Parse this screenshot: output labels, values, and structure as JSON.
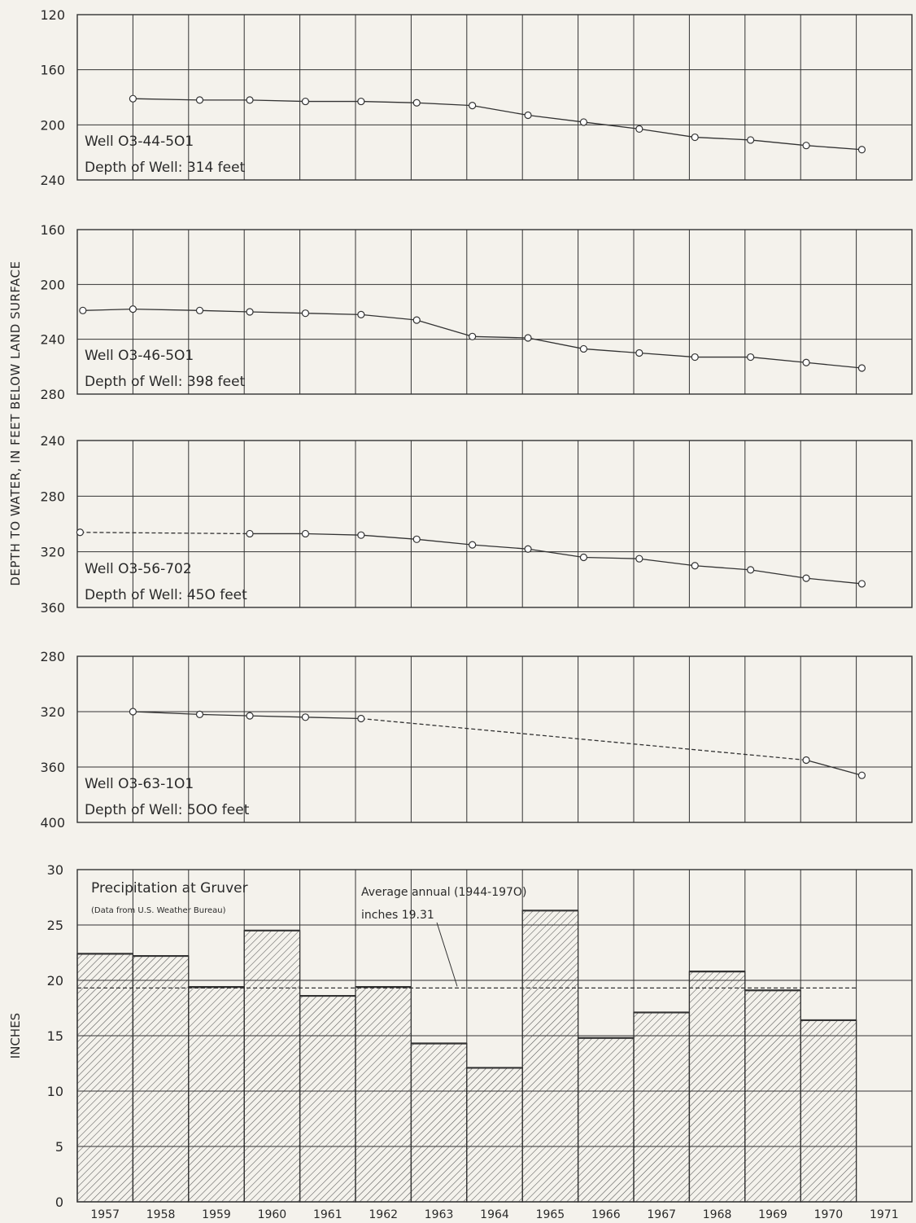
{
  "figure": {
    "y_axis_label_wells": "DEPTH TO WATER, IN FEET BELOW LAND SURFACE",
    "y_axis_label_precip": "INCHES",
    "years": [
      "1957",
      "1958",
      "1959",
      "1960",
      "1961",
      "1962",
      "1963",
      "1964",
      "1965",
      "1966",
      "1967",
      "1968",
      "1969",
      "1970",
      "1971"
    ]
  },
  "chart_data": [
    {
      "type": "line",
      "well_label": "Well  O3-44-5O1",
      "depth_label": "Depth  of  Well: 314  feet",
      "ylim": [
        240,
        120
      ],
      "yticks": [
        120,
        160,
        200,
        240
      ],
      "inverted": true,
      "points": [
        {
          "x": 1958.0,
          "y": 181
        },
        {
          "x": 1959.2,
          "y": 182
        },
        {
          "x": 1960.1,
          "y": 182
        },
        {
          "x": 1961.1,
          "y": 183
        },
        {
          "x": 1962.1,
          "y": 183
        },
        {
          "x": 1963.1,
          "y": 184
        },
        {
          "x": 1964.1,
          "y": 186
        },
        {
          "x": 1965.1,
          "y": 193
        },
        {
          "x": 1966.1,
          "y": 198
        },
        {
          "x": 1967.1,
          "y": 203
        },
        {
          "x": 1968.1,
          "y": 209
        },
        {
          "x": 1969.1,
          "y": 211
        },
        {
          "x": 1970.1,
          "y": 215
        },
        {
          "x": 1971.1,
          "y": 218
        }
      ],
      "dashed_segments": []
    },
    {
      "type": "line",
      "well_label": "Well  O3-46-5O1",
      "depth_label": "Depth  of  Well: 398  feet",
      "ylim": [
        280,
        160
      ],
      "yticks": [
        160,
        200,
        240,
        280
      ],
      "inverted": true,
      "points": [
        {
          "x": 1957.1,
          "y": 219
        },
        {
          "x": 1958.0,
          "y": 218
        },
        {
          "x": 1959.2,
          "y": 219
        },
        {
          "x": 1960.1,
          "y": 220
        },
        {
          "x": 1961.1,
          "y": 221
        },
        {
          "x": 1962.1,
          "y": 222
        },
        {
          "x": 1963.1,
          "y": 226
        },
        {
          "x": 1964.1,
          "y": 238
        },
        {
          "x": 1965.1,
          "y": 239
        },
        {
          "x": 1966.1,
          "y": 247
        },
        {
          "x": 1967.1,
          "y": 250
        },
        {
          "x": 1968.1,
          "y": 253
        },
        {
          "x": 1969.1,
          "y": 253
        },
        {
          "x": 1970.1,
          "y": 257
        },
        {
          "x": 1971.1,
          "y": 261
        }
      ],
      "dashed_segments": []
    },
    {
      "type": "line",
      "well_label": "Well  O3-56-702",
      "depth_label": "Depth  of  Well: 45O  feet",
      "ylim": [
        360,
        240
      ],
      "yticks": [
        240,
        280,
        320,
        360
      ],
      "inverted": true,
      "points": [
        {
          "x": 1957.05,
          "y": 306
        },
        {
          "x": 1960.1,
          "y": 307
        },
        {
          "x": 1961.1,
          "y": 307
        },
        {
          "x": 1962.1,
          "y": 308
        },
        {
          "x": 1963.1,
          "y": 311
        },
        {
          "x": 1964.1,
          "y": 315
        },
        {
          "x": 1965.1,
          "y": 318
        },
        {
          "x": 1966.1,
          "y": 324
        },
        {
          "x": 1967.1,
          "y": 325
        },
        {
          "x": 1968.1,
          "y": 330
        },
        {
          "x": 1969.1,
          "y": 333
        },
        {
          "x": 1970.1,
          "y": 339
        },
        {
          "x": 1971.1,
          "y": 343
        }
      ],
      "dashed_segments": [
        [
          0,
          1
        ]
      ]
    },
    {
      "type": "line",
      "well_label": "Well  O3-63-1O1",
      "depth_label": "Depth  of  Well: 5OO  feet",
      "ylim": [
        400,
        280
      ],
      "yticks": [
        280,
        320,
        360,
        400
      ],
      "inverted": true,
      "points": [
        {
          "x": 1958.0,
          "y": 320
        },
        {
          "x": 1959.2,
          "y": 322
        },
        {
          "x": 1960.1,
          "y": 323
        },
        {
          "x": 1961.1,
          "y": 324
        },
        {
          "x": 1962.1,
          "y": 325
        },
        {
          "x": 1970.1,
          "y": 355
        },
        {
          "x": 1971.1,
          "y": 366
        }
      ],
      "dashed_segments": [
        [
          4,
          5
        ]
      ]
    },
    {
      "type": "bar",
      "title": "Precipitation  at  Gruver",
      "subtitle": "(Data  from  U.S.  Weather  Bureau)",
      "annotation_line1": "Average  annual (1944-197O)",
      "annotation_line2": "inches  19.31",
      "average_value": 19.31,
      "ylim": [
        0,
        30
      ],
      "yticks": [
        0,
        5,
        10,
        15,
        20,
        25,
        30
      ],
      "categories": [
        "1957",
        "1958",
        "1959",
        "1960",
        "1961",
        "1962",
        "1963",
        "1964",
        "1965",
        "1966",
        "1967",
        "1968",
        "1969",
        "1970",
        "1971"
      ],
      "values": [
        22.4,
        22.2,
        19.4,
        24.5,
        18.6,
        19.4,
        14.3,
        12.1,
        26.3,
        14.8,
        17.1,
        20.8,
        19.1,
        16.4,
        null
      ]
    }
  ]
}
